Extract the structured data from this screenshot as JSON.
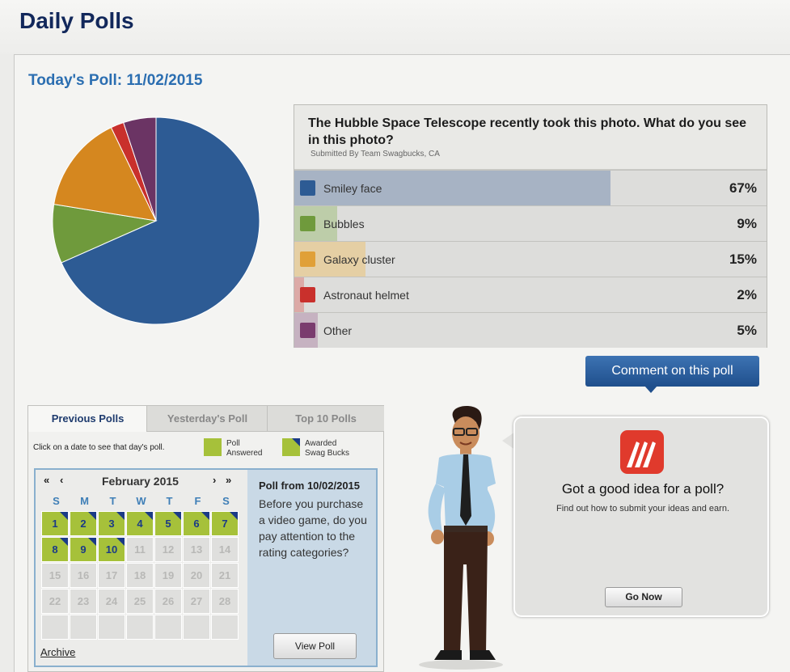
{
  "page": {
    "title": "Daily Polls"
  },
  "poll": {
    "date_title": "Today's Poll: 11/02/2015",
    "question": "The Hubble Space Telescope recently took this photo. What do you see in this photo?",
    "submitted_by": "Submitted By Team Swagbucks, CA",
    "options": [
      {
        "label": "Smiley face",
        "percent_label": "67%",
        "percent": 67,
        "color": "#2d5b94",
        "bar_color": "#a7b3c4"
      },
      {
        "label": "Bubbles",
        "percent_label": "9%",
        "percent": 9,
        "color": "#6f9a3c",
        "bar_color": "#bdcda9"
      },
      {
        "label": "Galaxy cluster",
        "percent_label": "15%",
        "percent": 15,
        "color": "#e0a038",
        "bar_color": "#e5cfa4"
      },
      {
        "label": "Astronaut helmet",
        "percent_label": "2%",
        "percent": 2,
        "color": "#c9302c",
        "bar_color": "#dcaaa7"
      },
      {
        "label": "Other",
        "percent_label": "5%",
        "percent": 5,
        "color": "#7a3b6e",
        "bar_color": "#c6b2c1"
      }
    ],
    "comment_button": "Comment on this poll"
  },
  "chart_data": {
    "type": "pie",
    "categories": [
      "Smiley face",
      "Bubbles",
      "Galaxy cluster",
      "Astronaut helmet",
      "Other"
    ],
    "values": [
      67,
      9,
      15,
      2,
      5
    ],
    "colors": [
      "#2d5b94",
      "#6f9a3c",
      "#d5871f",
      "#c9302c",
      "#6b3464"
    ]
  },
  "tabs": [
    {
      "label": "Previous Polls",
      "active": true
    },
    {
      "label": "Yesterday's Poll",
      "active": false
    },
    {
      "label": "Top 10 Polls",
      "active": false
    }
  ],
  "legend": {
    "hint": "Click on a date to see that day's poll.",
    "answered_line1": "Poll",
    "answered_line2": "Answered",
    "awarded_line1": "Awarded",
    "awarded_line2": "Swag Bucks"
  },
  "calendar": {
    "month": "February 2015",
    "nav_first": "«",
    "nav_prev": "‹",
    "nav_next": "›",
    "nav_last": "»",
    "weekdays": [
      "S",
      "M",
      "T",
      "W",
      "T",
      "F",
      "S"
    ],
    "weeks": [
      [
        "1",
        "2",
        "3",
        "4",
        "5",
        "6",
        "7"
      ],
      [
        "8",
        "9",
        "10",
        "11",
        "12",
        "13",
        "14"
      ],
      [
        "15",
        "16",
        "17",
        "18",
        "19",
        "20",
        "21"
      ],
      [
        "22",
        "23",
        "24",
        "25",
        "26",
        "27",
        "28"
      ],
      [
        "",
        "",
        "",
        "",
        "",
        "",
        ""
      ]
    ],
    "answered_days": [
      "1",
      "2",
      "3",
      "4",
      "5",
      "6",
      "7",
      "8",
      "9",
      "10"
    ],
    "archive_label": "Archive"
  },
  "poll_from": {
    "title": "Poll from 10/02/2015",
    "question": "Before you purchase a video game, do you pay attention to the rating categories?",
    "button": "View Poll"
  },
  "idea_box": {
    "title": "Got a good idea for a poll?",
    "subtitle": "Find out how to submit your ideas and earn.",
    "button": "Go Now"
  }
}
